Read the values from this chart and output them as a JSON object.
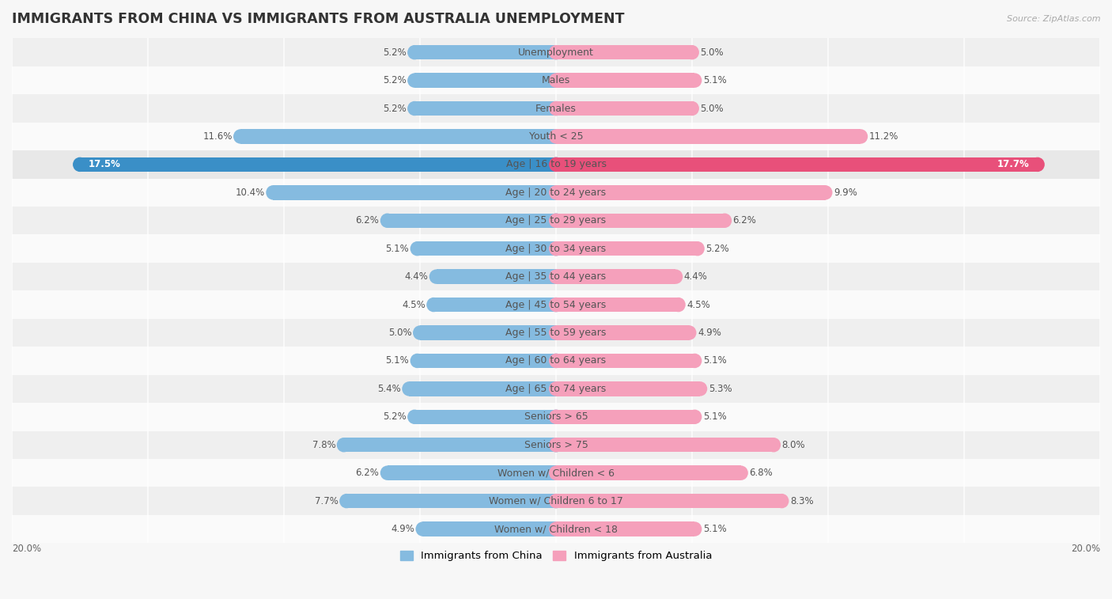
{
  "title": "IMMIGRANTS FROM CHINA VS IMMIGRANTS FROM AUSTRALIA UNEMPLOYMENT",
  "source": "Source: ZipAtlas.com",
  "categories": [
    "Unemployment",
    "Males",
    "Females",
    "Youth < 25",
    "Age | 16 to 19 years",
    "Age | 20 to 24 years",
    "Age | 25 to 29 years",
    "Age | 30 to 34 years",
    "Age | 35 to 44 years",
    "Age | 45 to 54 years",
    "Age | 55 to 59 years",
    "Age | 60 to 64 years",
    "Age | 65 to 74 years",
    "Seniors > 65",
    "Seniors > 75",
    "Women w/ Children < 6",
    "Women w/ Children 6 to 17",
    "Women w/ Children < 18"
  ],
  "china_values": [
    5.2,
    5.2,
    5.2,
    11.6,
    17.5,
    10.4,
    6.2,
    5.1,
    4.4,
    4.5,
    5.0,
    5.1,
    5.4,
    5.2,
    7.8,
    6.2,
    7.7,
    4.9
  ],
  "australia_values": [
    5.0,
    5.1,
    5.0,
    11.2,
    17.7,
    9.9,
    6.2,
    5.2,
    4.4,
    4.5,
    4.9,
    5.1,
    5.3,
    5.1,
    8.0,
    6.8,
    8.3,
    5.1
  ],
  "china_color": "#85bbe0",
  "australia_color": "#f5a0bb",
  "china_highlight_color": "#3a8fc7",
  "australia_highlight_color": "#e8507a",
  "china_label": "Immigrants from China",
  "australia_label": "Immigrants from Australia",
  "axis_max": 20.0,
  "bar_height": 0.52,
  "bg_color": "#f7f7f7",
  "row_colors_odd": "#efefef",
  "row_colors_even": "#fafafa",
  "title_fontsize": 12.5,
  "label_fontsize": 9,
  "value_fontsize": 8.5,
  "highlight_row": 4
}
